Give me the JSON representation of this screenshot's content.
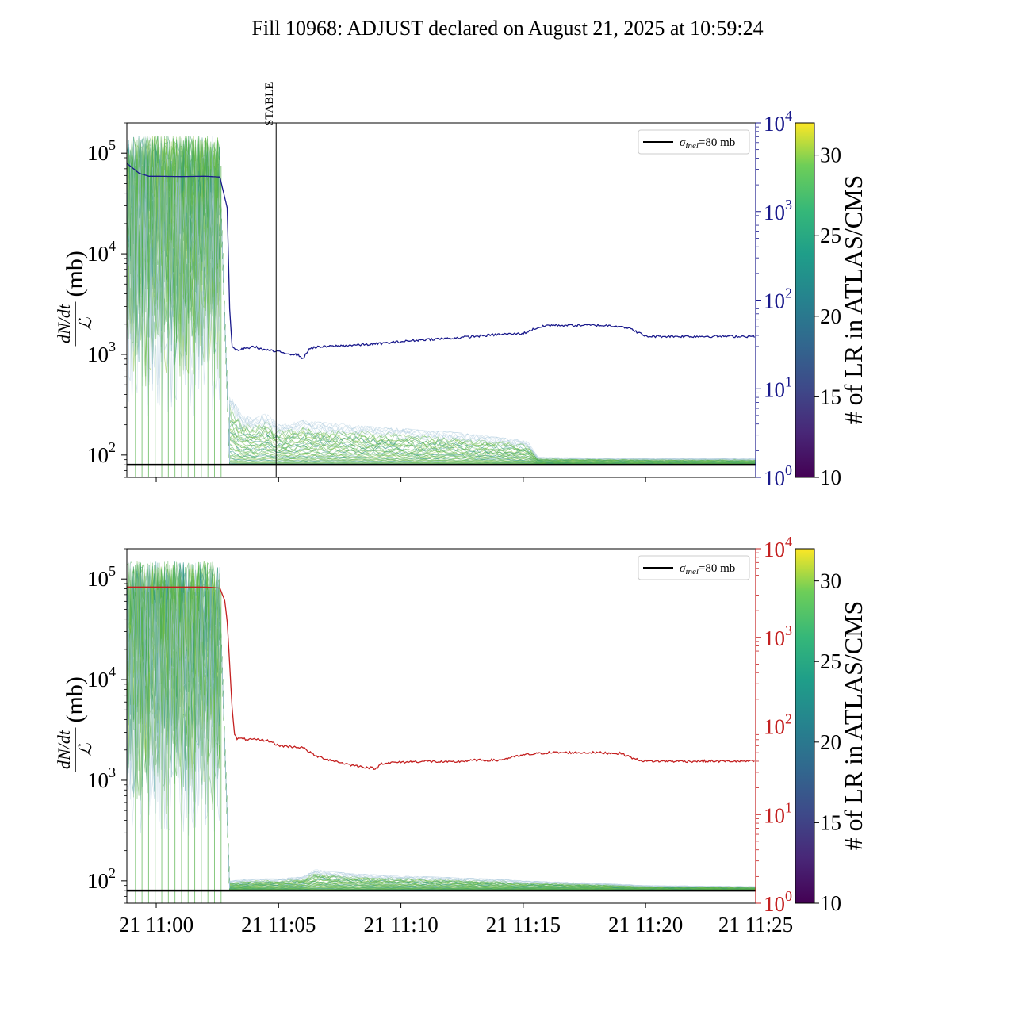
{
  "title": "Fill 10968: ADJUST declared on August 21, 2025 at 10:59:24",
  "colors": {
    "top_right_axis": "#1a1a8c",
    "bottom_right_axis": "#c42020",
    "reference_line": "#000000",
    "band_main": "#55b24a",
    "band_outer": "#2a8f8a",
    "band_faint": "#a8c7dc"
  },
  "chart_data": [
    {
      "type": "line",
      "panel": "top",
      "ylabel_left": "(mb)",
      "ylabel_fraction": {
        "numerator": "dN/dt",
        "denominator": "ℒ"
      },
      "yscale_left": "log",
      "ylim_left": [
        60,
        200000
      ],
      "yticks_left": [
        {
          "base": "10",
          "exp": "2",
          "value": 100
        },
        {
          "base": "10",
          "exp": "3",
          "value": 1000
        },
        {
          "base": "10",
          "exp": "4",
          "value": 10000
        },
        {
          "base": "10",
          "exp": "5",
          "value": 100000
        }
      ],
      "yscale_right": "log",
      "ylim_right": [
        1,
        10000
      ],
      "yticks_right": [
        {
          "base": "10",
          "exp": "0",
          "value": 1
        },
        {
          "base": "10",
          "exp": "1",
          "value": 10
        },
        {
          "base": "10",
          "exp": "2",
          "value": 100
        },
        {
          "base": "10",
          "exp": "3",
          "value": 1000
        },
        {
          "base": "10",
          "exp": "4",
          "value": 10000
        }
      ],
      "right_axis_color": "#1a1a8c",
      "xlim_minutes": [
        -1.2,
        24.5
      ],
      "xaxis_ticklabels_shown": false,
      "vline": {
        "label": "STABLE",
        "x_minutes": 4.9
      },
      "hline": {
        "y": 80,
        "legend": "σ_inel=80 mb"
      },
      "legend": {
        "symbol": "σ",
        "subscript": "inel",
        "suffix": "=80 mb",
        "position": "top-right"
      },
      "series_right": {
        "x_minutes": [
          -1.2,
          -0.7,
          -0.3,
          0,
          1,
          2,
          2.6,
          2.9,
          3.0,
          3.1,
          3.3,
          4,
          4.3,
          5,
          5.8,
          6,
          6.3,
          7,
          8,
          9,
          10,
          11,
          12,
          13,
          14,
          15,
          15.5,
          16,
          17,
          18,
          19,
          19.5,
          20,
          22,
          24.5
        ],
        "y": [
          3500,
          2700,
          2500,
          2500,
          2480,
          2500,
          2450,
          1100,
          80,
          30,
          27,
          30,
          28,
          26,
          24,
          22,
          29,
          30,
          31,
          32,
          34,
          36,
          37,
          39,
          41,
          42,
          48,
          52,
          52,
          52,
          51,
          46,
          39,
          39,
          39
        ]
      },
      "band": {
        "description_free": true,
        "high_before_minutes": [
          -1.2,
          2.6
        ],
        "high_level": 150000,
        "drop_minutes": [
          2.6,
          3.0
        ],
        "floor": 80,
        "upper_envelope_x": [
          3.0,
          3.5,
          4,
          4.5,
          5,
          6,
          7,
          8,
          9,
          10,
          11,
          12,
          13,
          14,
          15,
          15.2,
          15.6,
          20,
          24.5
        ],
        "upper_envelope_y": [
          400,
          250,
          230,
          260,
          200,
          220,
          210,
          200,
          190,
          185,
          175,
          170,
          160,
          150,
          140,
          135,
          95,
          93,
          92
        ]
      }
    },
    {
      "type": "line",
      "panel": "bottom",
      "ylabel_left": "(mb)",
      "ylabel_fraction": {
        "numerator": "dN/dt",
        "denominator": "ℒ"
      },
      "yscale_left": "log",
      "ylim_left": [
        60,
        200000
      ],
      "yticks_left": [
        {
          "base": "10",
          "exp": "2",
          "value": 100
        },
        {
          "base": "10",
          "exp": "3",
          "value": 1000
        },
        {
          "base": "10",
          "exp": "4",
          "value": 10000
        },
        {
          "base": "10",
          "exp": "5",
          "value": 100000
        }
      ],
      "yscale_right": "log",
      "ylim_right": [
        1,
        10000
      ],
      "yticks_right": [
        {
          "base": "10",
          "exp": "0",
          "value": 1
        },
        {
          "base": "10",
          "exp": "1",
          "value": 10
        },
        {
          "base": "10",
          "exp": "2",
          "value": 100
        },
        {
          "base": "10",
          "exp": "3",
          "value": 1000
        },
        {
          "base": "10",
          "exp": "4",
          "value": 10000
        }
      ],
      "right_axis_color": "#c42020",
      "xlim_minutes": [
        -1.2,
        24.5
      ],
      "xticks": [
        {
          "label": "21 11:00",
          "minutes": 0
        },
        {
          "label": "21 11:05",
          "minutes": 5
        },
        {
          "label": "21 11:10",
          "minutes": 10
        },
        {
          "label": "21 11:15",
          "minutes": 15
        },
        {
          "label": "21 11:20",
          "minutes": 20
        },
        {
          "label": "21 11:25",
          "minutes": 25
        }
      ],
      "hline": {
        "y": 80,
        "legend": "σ_inel=80 mb"
      },
      "legend": {
        "symbol": "σ",
        "subscript": "inel",
        "suffix": "=80 mb",
        "position": "top-right"
      },
      "series_right": {
        "x_minutes": [
          -1.2,
          0,
          1,
          2,
          2.6,
          2.8,
          2.9,
          3.0,
          3.1,
          3.2,
          3.3,
          4,
          4.6,
          5,
          6,
          6.5,
          7,
          8,
          9,
          9.2,
          10,
          11,
          12,
          13,
          14,
          15,
          16,
          17,
          18,
          19,
          19.6,
          20,
          22,
          24.5
        ],
        "y": [
          3700,
          3700,
          3700,
          3700,
          3600,
          2600,
          1500,
          500,
          160,
          80,
          72,
          70,
          68,
          60,
          57,
          46,
          42,
          36,
          33,
          38,
          39,
          40,
          39,
          41,
          41,
          47,
          50,
          50,
          50,
          49,
          42,
          40,
          40,
          40
        ]
      },
      "band": {
        "high_before_minutes": [
          -1.2,
          2.6
        ],
        "high_level": 150000,
        "drop_minutes": [
          2.6,
          3.0
        ],
        "floor": 80,
        "upper_envelope_x": [
          3.0,
          4,
          5,
          6,
          6.5,
          7,
          8,
          10,
          12,
          14,
          15,
          18,
          20,
          24.5
        ],
        "upper_envelope_y": [
          100,
          105,
          105,
          110,
          130,
          125,
          118,
          112,
          108,
          104,
          100,
          95,
          90,
          88
        ]
      }
    }
  ],
  "colorbar": {
    "label": "# of LR in ATLAS/CMS",
    "range": [
      10,
      32
    ],
    "ticks": [
      "10",
      "15",
      "20",
      "25",
      "30"
    ],
    "tick_values": [
      10,
      15,
      20,
      25,
      30
    ],
    "colormap": "viridis"
  }
}
